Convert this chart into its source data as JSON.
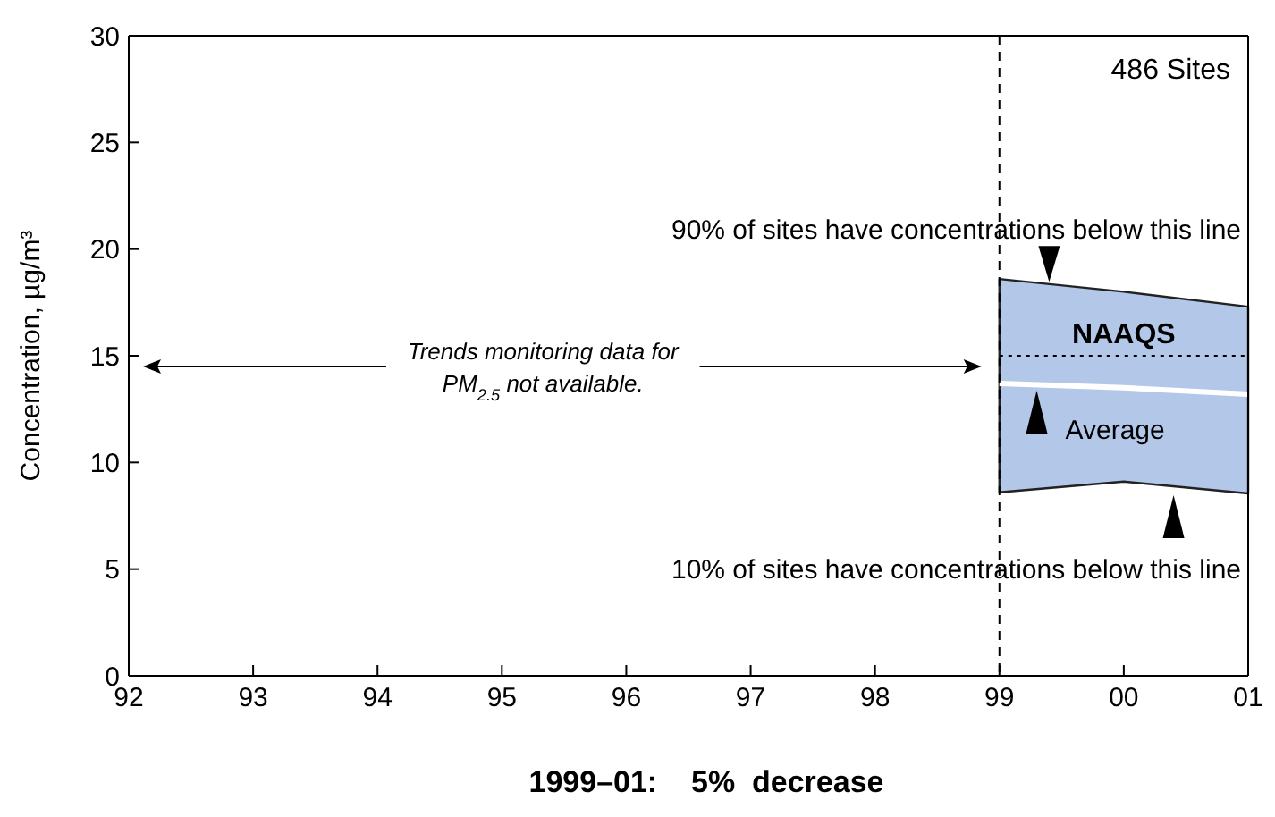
{
  "chart_data": {
    "type": "line",
    "x": [
      1999,
      2000,
      2001
    ],
    "series": [
      {
        "color": "#ffffff",
        "values": [
          13.7,
          13.5,
          13.2
        ],
        "lower": [
          8.6,
          9.1,
          8.55
        ],
        "upper": [
          18.6,
          18.0,
          17.3
        ]
      }
    ],
    "xlim": [
      1992,
      2001
    ],
    "xticks": [
      {
        "value": 1992,
        "label": "92"
      },
      {
        "value": 1993,
        "label": "93"
      },
      {
        "value": 1994,
        "label": "94"
      },
      {
        "value": 1995,
        "label": "95"
      },
      {
        "value": 1996,
        "label": "96"
      },
      {
        "value": 1997,
        "label": "97"
      },
      {
        "value": 1998,
        "label": "98"
      },
      {
        "value": 1999,
        "label": "99"
      },
      {
        "value": 2000,
        "label": "00"
      },
      {
        "value": 2001,
        "label": "01"
      }
    ],
    "ylim": [
      0,
      30
    ],
    "yticks": [
      0,
      5,
      10,
      15,
      20,
      25,
      30
    ],
    "ylabel": "Concentration, µg/m³",
    "ref_lines": [
      {
        "axis": "y",
        "value": 15,
        "label": "NAAQS",
        "line_style": "dotted"
      },
      {
        "axis": "x",
        "value": 1999,
        "line_style": "dashed"
      }
    ],
    "annotations": [
      "486 Sites",
      {
        "text": "90% of sites have concentrations below this line",
        "x": 1999.4,
        "y": 18.3
      },
      {
        "text": "10% of sites have concentrations below this line",
        "x": 2000.4,
        "y": 8.8
      },
      "Trends monitoring data for PM$_{2.5}$ not available.",
      "1999–01:    5%  decrease",
      {
        "text": "Average",
        "x": 1999.3,
        "y": 13.7
      }
    ],
    "grid": false,
    "line_style": "solid",
    "marker": "none"
  }
}
